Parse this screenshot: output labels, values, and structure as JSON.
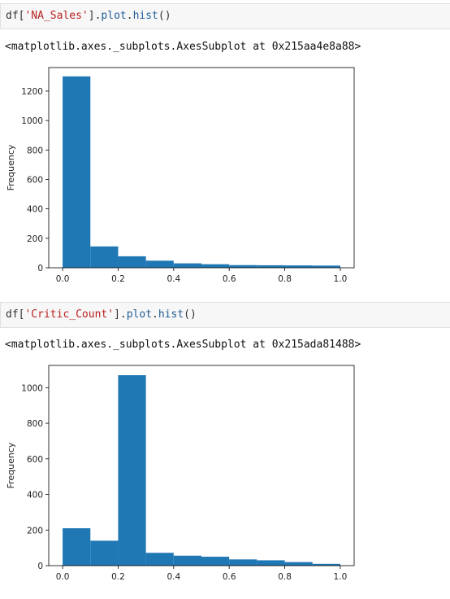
{
  "cells": [
    {
      "input": {
        "pre": "df[",
        "str": "'NA_Sales'",
        "mid": "].",
        "attr1": "plot",
        "dot": ".",
        "attr2": "hist",
        "post": "()"
      },
      "output": "<matplotlib.axes._subplots.AxesSubplot at 0x215aa4e8a88>",
      "chart_data": {
        "type": "bar",
        "title": "",
        "xlabel": "",
        "ylabel": "Frequency",
        "x_ticks": [
          "0.0",
          "0.2",
          "0.4",
          "0.6",
          "0.8",
          "1.0"
        ],
        "y_ticks": [
          "0",
          "200",
          "400",
          "600",
          "800",
          "1000",
          "1200"
        ],
        "xlim": [
          -0.05,
          1.05
        ],
        "ylim": [
          0,
          1360
        ],
        "bin_edges": [
          0.0,
          0.1,
          0.2,
          0.3,
          0.4,
          0.5,
          0.6,
          0.7,
          0.8,
          0.9,
          1.0
        ],
        "values": [
          1300,
          145,
          78,
          48,
          30,
          24,
          18,
          17,
          16,
          15
        ],
        "bar_color": "#1f77b4",
        "grid": false
      }
    },
    {
      "input": {
        "pre": "df[",
        "str": "'Critic_Count'",
        "mid": "].",
        "attr1": "plot",
        "dot": ".",
        "attr2": "hist",
        "post": "()"
      },
      "output": "<matplotlib.axes._subplots.AxesSubplot at 0x215ada81488>",
      "chart_data": {
        "type": "bar",
        "title": "",
        "xlabel": "",
        "ylabel": "Frequency",
        "x_ticks": [
          "0.0",
          "0.2",
          "0.4",
          "0.6",
          "0.8",
          "1.0"
        ],
        "y_ticks": [
          "0",
          "200",
          "400",
          "600",
          "800",
          "1000"
        ],
        "xlim": [
          -0.05,
          1.05
        ],
        "ylim": [
          0,
          1125
        ],
        "bin_edges": [
          0.0,
          0.1,
          0.2,
          0.3,
          0.4,
          0.5,
          0.6,
          0.7,
          0.8,
          0.9,
          1.0
        ],
        "values": [
          210,
          140,
          1070,
          72,
          56,
          50,
          35,
          30,
          20,
          10
        ],
        "bar_color": "#1f77b4",
        "grid": false
      }
    }
  ]
}
